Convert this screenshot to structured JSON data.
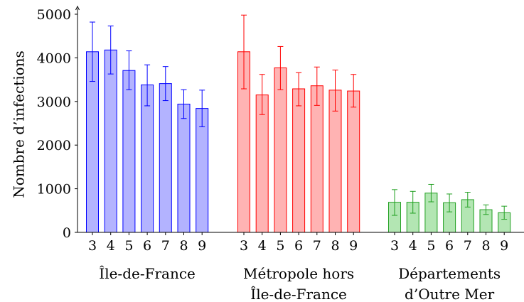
{
  "chart_data": {
    "type": "bar",
    "ylabel": "Nombre d’infections",
    "ylim": [
      0,
      5000
    ],
    "yticks": [
      "0",
      "1000",
      "2000",
      "3000",
      "4000",
      "5000"
    ],
    "categories": [
      "3",
      "4",
      "5",
      "6",
      "7",
      "8",
      "9"
    ],
    "grid": false,
    "error_bars": true,
    "series": [
      {
        "name_lines": [
          "Île-de-France"
        ],
        "color": "#0000ff",
        "fill": "#b3b3ff",
        "values": [
          4140,
          4180,
          3710,
          3380,
          3410,
          2940,
          2840
        ],
        "err_low": [
          3460,
          3630,
          3270,
          2900,
          3020,
          2610,
          2420
        ],
        "err_high": [
          4820,
          4730,
          4160,
          3840,
          3800,
          3270,
          3260
        ]
      },
      {
        "name_lines": [
          "Métropole hors",
          "Île-de-France"
        ],
        "color": "#ff0000",
        "fill": "#ffb3b3",
        "values": [
          4140,
          3150,
          3770,
          3290,
          3360,
          3260,
          3240
        ],
        "err_low": [
          3290,
          2700,
          3270,
          2900,
          2910,
          2780,
          2870
        ],
        "err_high": [
          4980,
          3620,
          4260,
          3660,
          3790,
          3720,
          3620
        ]
      },
      {
        "name_lines": [
          "Départements",
          "d’Outre Mer"
        ],
        "color": "#22a022",
        "fill": "#b3e6b3",
        "values": [
          690,
          690,
          900,
          680,
          750,
          520,
          450
        ],
        "err_low": [
          390,
          440,
          700,
          470,
          580,
          410,
          300
        ],
        "err_high": [
          980,
          940,
          1100,
          880,
          920,
          630,
          600
        ]
      }
    ]
  }
}
